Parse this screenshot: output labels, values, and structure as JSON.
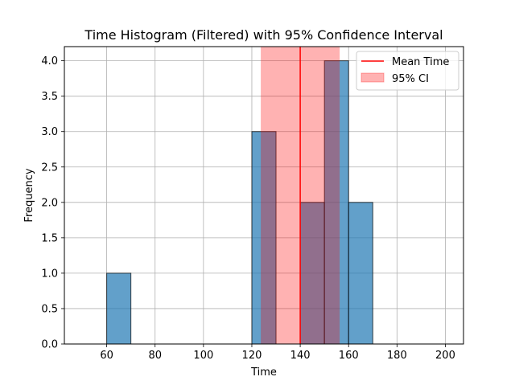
{
  "chart_data": {
    "type": "bar",
    "title": "Time Histogram (Filtered) with 95% Confidence Interval",
    "xlabel": "Time",
    "ylabel": "Frequency",
    "xlim": [
      42.5,
      207.5
    ],
    "ylim": [
      0,
      4.2
    ],
    "xticks": [
      60,
      80,
      100,
      120,
      140,
      160,
      180,
      200
    ],
    "yticks": [
      0.0,
      0.5,
      1.0,
      1.5,
      2.0,
      2.5,
      3.0,
      3.5,
      4.0
    ],
    "grid": true,
    "legend_position": "top-right",
    "bins": [
      {
        "start": 60,
        "end": 70,
        "count": 1
      },
      {
        "start": 120,
        "end": 130,
        "count": 3
      },
      {
        "start": 140,
        "end": 150,
        "count": 2
      },
      {
        "start": 150,
        "end": 160,
        "count": 4
      },
      {
        "start": 160,
        "end": 170,
        "count": 2
      }
    ],
    "mean_time": 140,
    "ci_95": [
      123.7,
      156.3
    ],
    "legend": {
      "mean_label": "Mean Time",
      "ci_label": "95% CI"
    },
    "colors": {
      "bar": "#1f77b4",
      "mean_line": "#ff0000",
      "ci_band": "#ff0000"
    }
  }
}
